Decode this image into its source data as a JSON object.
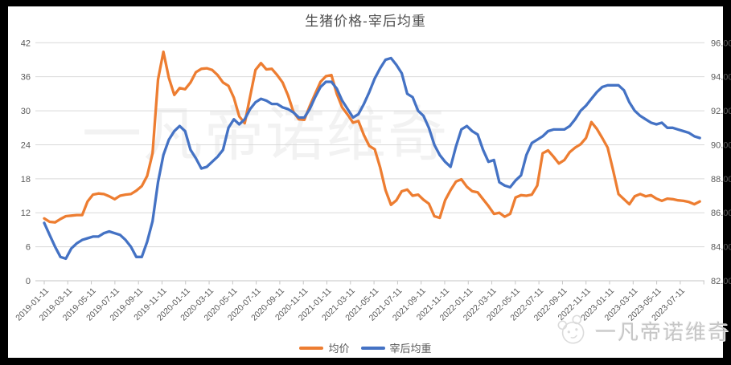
{
  "title": "生猪价格-宰后均重",
  "watermark": {
    "center_text": "一凡帝诺维奇",
    "bottom_right_text": "一凡帝诺维奇"
  },
  "legend": {
    "items": [
      {
        "label": "均价"
      },
      {
        "label": "宰后均重"
      }
    ]
  },
  "colors": {
    "avg_price_line": "#ED7D31",
    "carcass_weight_line": "#4472C4",
    "gridline": "#D9D9D9",
    "axis_text": "#595959",
    "frame": "#000000",
    "background": "#FFFFFF"
  },
  "chart_data": {
    "type": "line",
    "title": "生猪价格-宰后均重",
    "grid": "horizontal",
    "legend_position": "bottom",
    "x_start": "2019-01-11",
    "x_step_days": 14,
    "x_tick_labels": [
      "2019-01-11",
      "2019-03-11",
      "2019-05-11",
      "2019-07-11",
      "2019-09-11",
      "2019-11-11",
      "2020-01-11",
      "2020-03-11",
      "2020-05-11",
      "2020-07-11",
      "2020-09-11",
      "2020-11-11",
      "2021-01-11",
      "2021-03-11",
      "2021-05-11",
      "2021-07-11",
      "2021-09-11",
      "2021-11-11",
      "2022-01-11",
      "2022-03-11",
      "2022-05-11",
      "2022-07-11",
      "2022-09-11",
      "2022-11-11",
      "2023-01-11",
      "2023-03-11",
      "2023-05-11",
      "2023-07-11"
    ],
    "y_left": {
      "min": 0,
      "max": 42,
      "step": 6,
      "labels": [
        "0",
        "6",
        "12",
        "18",
        "24",
        "30",
        "36",
        "42"
      ]
    },
    "y_right": {
      "min": 82,
      "max": 96,
      "step": 2,
      "labels": [
        "82.00",
        "84.00",
        "86.00",
        "88.00",
        "90.00",
        "92.00",
        "94.00",
        "96.00"
      ]
    },
    "series": [
      {
        "name": "均价",
        "axis": "left",
        "color": "#ED7D31",
        "values": [
          11.0,
          10.4,
          10.3,
          10.9,
          11.4,
          11.5,
          11.6,
          11.6,
          14.0,
          15.2,
          15.4,
          15.3,
          14.9,
          14.4,
          15.0,
          15.2,
          15.3,
          15.9,
          16.7,
          18.5,
          22.5,
          35.5,
          40.4,
          35.8,
          32.8,
          34.0,
          33.8,
          35.0,
          36.8,
          37.4,
          37.5,
          37.2,
          36.3,
          35.0,
          34.4,
          32.3,
          29.0,
          27.8,
          32.5,
          37.2,
          38.4,
          37.3,
          37.4,
          36.3,
          35.0,
          32.7,
          29.8,
          28.5,
          28.4,
          30.8,
          33.0,
          35.1,
          36.1,
          36.3,
          33.0,
          30.6,
          29.3,
          27.9,
          28.2,
          25.7,
          23.8,
          23.2,
          20.0,
          16.0,
          13.4,
          14.2,
          15.8,
          16.1,
          15.0,
          15.2,
          14.3,
          13.6,
          11.4,
          11.1,
          14.2,
          16.0,
          17.5,
          17.9,
          16.6,
          15.8,
          15.6,
          14.4,
          13.2,
          11.8,
          12.0,
          11.3,
          11.8,
          14.7,
          15.1,
          15.0,
          15.2,
          16.8,
          22.5,
          23.0,
          21.9,
          20.7,
          21.3,
          22.7,
          23.5,
          24.1,
          25.2,
          28.0,
          26.8,
          25.2,
          23.5,
          19.5,
          15.3,
          14.4,
          13.5,
          14.9,
          15.3,
          14.9,
          15.1,
          14.5,
          14.1,
          14.5,
          14.4,
          14.2,
          14.1,
          13.9,
          13.5,
          14.0
        ]
      },
      {
        "name": "宰后均重",
        "axis": "right",
        "color": "#4472C4",
        "values": [
          85.4,
          84.7,
          84.0,
          83.4,
          83.3,
          83.9,
          84.2,
          84.4,
          84.5,
          84.6,
          84.6,
          84.8,
          84.9,
          84.8,
          84.7,
          84.4,
          84.0,
          83.4,
          83.4,
          84.3,
          85.5,
          87.8,
          89.4,
          90.3,
          90.8,
          91.1,
          90.8,
          89.7,
          89.2,
          88.6,
          88.7,
          89.0,
          89.3,
          89.7,
          91.0,
          91.5,
          91.2,
          91.5,
          92.1,
          92.5,
          92.7,
          92.6,
          92.4,
          92.4,
          92.2,
          92.1,
          91.9,
          91.6,
          91.6,
          92.1,
          92.8,
          93.4,
          93.7,
          93.7,
          93.3,
          92.6,
          92.1,
          91.6,
          91.8,
          92.4,
          93.1,
          93.9,
          94.5,
          95.0,
          95.1,
          94.7,
          94.2,
          93.0,
          92.8,
          92.0,
          91.7,
          91.0,
          90.0,
          89.4,
          89.0,
          88.7,
          89.9,
          90.9,
          91.1,
          90.8,
          90.6,
          89.7,
          89.0,
          89.1,
          87.8,
          87.6,
          87.5,
          87.9,
          88.2,
          89.4,
          90.1,
          90.3,
          90.5,
          90.8,
          90.9,
          90.9,
          90.9,
          91.1,
          91.5,
          92.0,
          92.3,
          92.7,
          93.1,
          93.4,
          93.5,
          93.5,
          93.5,
          93.2,
          92.5,
          92.0,
          91.7,
          91.5,
          91.3,
          91.2,
          91.3,
          91.0,
          91.0,
          90.9,
          90.8,
          90.7,
          90.5,
          90.4
        ]
      }
    ]
  }
}
